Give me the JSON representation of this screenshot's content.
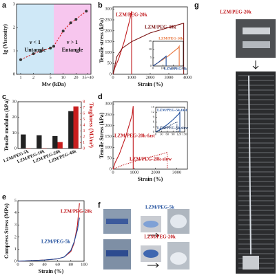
{
  "chart_data": [
    {
      "panel": "a",
      "type": "scatter",
      "xlabel": "Mw (kDa)",
      "ylabel": "lg (Viscosity)",
      "xscale": "log",
      "xlim": [
        0.8,
        45
      ],
      "xticks": [
        1,
        2,
        5,
        10,
        20,
        {
          "value": 38,
          "label": "35~40"
        }
      ],
      "ylim": [
        0,
        3
      ],
      "yticks": [
        0,
        1,
        2,
        3
      ],
      "regions": [
        {
          "from": 0.8,
          "to": 6,
          "color": "#cfe8f7",
          "text": [
            "ν < 1",
            "Untangle"
          ]
        },
        {
          "from": 6,
          "to": 45,
          "color": "#f7c6ee",
          "text": [
            "ν > 1",
            "Entangle"
          ]
        }
      ],
      "series": [
        {
          "color": "#333333",
          "line_color": "#d62020",
          "line_style": "dashed",
          "x": [
            1,
            2,
            3,
            5,
            6,
            10,
            15,
            20,
            35
          ],
          "values": [
            0.62,
            0.88,
            1.0,
            1.12,
            1.2,
            1.85,
            2.2,
            2.35,
            2.7
          ]
        }
      ]
    },
    {
      "panel": "b",
      "type": "line",
      "xlabel": "Strain (%)",
      "ylabel": "Tensile stress (kPa)",
      "xlim": [
        0,
        4000
      ],
      "xticks": [
        0,
        1000,
        2000,
        3000,
        4000
      ],
      "ylim": [
        0,
        310
      ],
      "yticks": [
        0,
        50,
        100,
        150,
        200,
        250,
        300
      ],
      "series": [
        {
          "name": "LZM/PEG-20k",
          "color": "#c0181c",
          "x": [
            0,
            100,
            300,
            600,
            900,
            1000,
            1000
          ],
          "values": [
            0,
            30,
            70,
            150,
            250,
            290,
            0
          ]
        },
        {
          "name": "LZM/PEG-40k",
          "color": "#7a1212",
          "x": [
            0,
            200,
            500,
            1000,
            2000,
            3000,
            3800,
            3800
          ],
          "values": [
            0,
            80,
            120,
            150,
            190,
            215,
            235,
            0
          ]
        }
      ],
      "inset": {
        "xlim": [
          0,
          300
        ],
        "xticks": [
          0,
          100,
          200,
          300
        ],
        "ylim": [
          0,
          15
        ],
        "yticks": [
          0,
          5,
          10,
          15
        ],
        "series": [
          {
            "name": "LZM/PEG-10k",
            "color": "#e8743b",
            "x": [
              0,
              50,
              100,
              150,
              200,
              250,
              260,
              260
            ],
            "values": [
              0,
              2,
              4,
              6,
              8.5,
              11,
              12,
              0
            ]
          },
          {
            "name": "LZM/PEG-5k",
            "color": "#1f4e9c",
            "x": [
              0,
              50,
              100,
              130,
              130
            ],
            "values": [
              0,
              2,
              4.5,
              6,
              0
            ]
          }
        ]
      }
    },
    {
      "panel": "c",
      "type": "bar",
      "ylabel": "Tensile modulus (kPa)",
      "y2label": "Toughness (MJ/m³)",
      "categories": [
        "LZM/PEG-5k",
        "LZM/PEG-10k",
        "LZM/PEG-20k",
        "LZM/PEG-40k"
      ],
      "ylim": [
        0,
        30
      ],
      "yticks": [
        0,
        10,
        20,
        30
      ],
      "y2lim": [
        0,
        8
      ],
      "y2ticks": [
        0,
        1,
        2,
        3,
        4,
        5,
        6,
        7,
        8
      ],
      "series": [
        {
          "color": "#222222",
          "values": [
            9,
            8.5,
            8,
            24
          ]
        },
        {
          "color": "#c81e1e",
          "axis": "y2",
          "values": [
            0.05,
            0.05,
            1.1,
            7.2
          ]
        }
      ]
    },
    {
      "panel": "d",
      "type": "line",
      "xlabel": "Strain (%)",
      "ylabel": "Tensile Stress (kPa)",
      "xlim": [
        0,
        3500
      ],
      "xticks": [
        0,
        1000,
        2000,
        3000
      ],
      "ylim": [
        0,
        310
      ],
      "yticks": [
        0,
        50,
        100,
        150,
        200,
        250,
        300
      ],
      "series": [
        {
          "name": "LZM/PEG-20k-fast",
          "color": "#c0181c",
          "x": [
            0,
            100,
            300,
            600,
            900,
            950,
            950
          ],
          "values": [
            0,
            30,
            70,
            150,
            250,
            290,
            0
          ]
        },
        {
          "name": "LZM/PEG-20k-slow",
          "color": "#c0181c",
          "dash": "dotted",
          "x": [
            0,
            500,
            1000,
            1500,
            2000,
            2500,
            2550,
            2550
          ],
          "values": [
            0,
            20,
            35,
            50,
            62,
            75,
            78,
            0
          ]
        }
      ],
      "inset": {
        "xlim": [
          0,
          150
        ],
        "xticks": [
          0,
          30,
          60,
          90,
          120,
          150
        ],
        "ylim": [
          0,
          15
        ],
        "yticks": [
          0,
          3,
          6,
          9,
          12,
          15
        ],
        "series": [
          {
            "name": "LZM/PEG-5k-fast",
            "color": "#1f4e9c",
            "x": [
              0,
              30,
              60,
              90,
              120,
              125,
              125
            ],
            "values": [
              0,
              2,
              4.5,
              7.5,
              11,
              12,
              0
            ]
          },
          {
            "name": "LZM/PEG-5k-slow",
            "color": "#0d2a5c",
            "dash": "dotted",
            "x": [
              0,
              30,
              60,
              90,
              110,
              110
            ],
            "values": [
              0,
              1.5,
              3,
              5,
              6,
              0
            ]
          }
        ]
      }
    },
    {
      "panel": "e",
      "type": "line",
      "xlabel": "Strain (%)",
      "ylabel": "Compress Stress (MPa)",
      "xlim": [
        0,
        100
      ],
      "xticks": [
        0,
        20,
        40,
        60,
        80,
        100
      ],
      "ylim": [
        0,
        5
      ],
      "yticks": [
        0,
        1,
        2,
        3,
        4,
        5
      ],
      "series": [
        {
          "name": "LZM/PEG-20k",
          "color": "#c0181c",
          "x": [
            0,
            20,
            40,
            60,
            70,
            80,
            85,
            90,
            93
          ],
          "values": [
            0,
            0.05,
            0.1,
            0.2,
            0.35,
            0.8,
            1.5,
            3,
            4.8
          ]
        },
        {
          "name": "LZM/PEG-5k",
          "color": "#1f4e9c",
          "x": [
            0,
            20,
            40,
            60,
            70,
            80,
            85,
            90,
            93
          ],
          "values": [
            0,
            0.05,
            0.1,
            0.2,
            0.35,
            0.9,
            1.6,
            2.6,
            3.6
          ]
        }
      ]
    }
  ],
  "images": {
    "f": {
      "panel": "f",
      "labels": [
        "LZM/PEG-5k",
        "LZM/PEG-20k"
      ]
    },
    "g": {
      "panel": "g",
      "label": "LZM/PEG-20k"
    }
  }
}
